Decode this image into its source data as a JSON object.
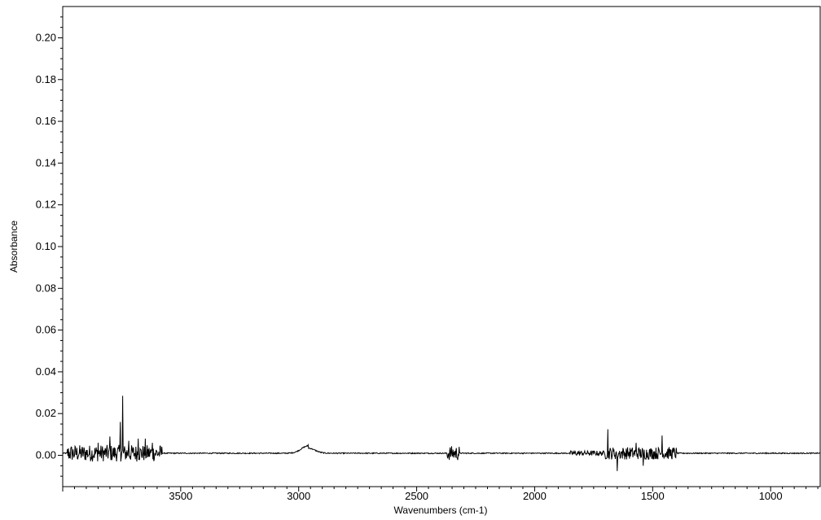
{
  "chart_data": {
    "type": "line",
    "title": "",
    "xlabel": "Wavenumbers (cm-1)",
    "ylabel": "Absorbance",
    "xlim": [
      4000,
      790
    ],
    "ylim": [
      -0.015,
      0.215
    ],
    "x_reversed": true,
    "grid": false,
    "legend": "none",
    "line_color": "#000000",
    "x_ticks": [
      3500,
      3000,
      2500,
      2000,
      1500,
      1000
    ],
    "x_tick_labels": [
      "3500",
      "3000",
      "2500",
      "2000",
      "1500",
      "1000"
    ],
    "y_ticks": [
      0.0,
      0.02,
      0.04,
      0.06,
      0.08,
      0.1,
      0.12,
      0.14,
      0.16,
      0.18,
      0.2
    ],
    "y_tick_labels": [
      "0.00",
      "0.02",
      "0.04",
      "0.06",
      "0.08",
      "0.10",
      "0.12",
      "0.14",
      "0.16",
      "0.18",
      "0.20"
    ],
    "series": [
      {
        "baseline": 0.001,
        "noise_regions": [
          {
            "from": 3980,
            "to": 3580,
            "amplitude": 0.004
          },
          {
            "from": 2370,
            "to": 2320,
            "amplitude": 0.0035
          },
          {
            "from": 1850,
            "to": 1700,
            "amplitude": 0.0012
          },
          {
            "from": 1700,
            "to": 1400,
            "amplitude": 0.003
          }
        ],
        "peaks": [
          {
            "x": 3745,
            "y": 0.0285
          },
          {
            "x": 3755,
            "y": 0.016
          },
          {
            "x": 3800,
            "y": 0.009
          },
          {
            "x": 3680,
            "y": 0.008
          },
          {
            "x": 3650,
            "y": 0.008
          },
          {
            "x": 3720,
            "y": 0.007
          },
          {
            "x": 3850,
            "y": 0.006
          },
          {
            "x": 3620,
            "y": 0.006
          },
          {
            "x": 2960,
            "y": 0.005
          },
          {
            "x": 1690,
            "y": 0.0125
          },
          {
            "x": 1650,
            "y": -0.0075
          },
          {
            "x": 1460,
            "y": 0.0095
          },
          {
            "x": 1570,
            "y": 0.006
          },
          {
            "x": 1540,
            "y": -0.005
          }
        ],
        "bumps": [
          {
            "center": 2960,
            "width": 70,
            "height": 0.0035
          }
        ]
      }
    ]
  }
}
